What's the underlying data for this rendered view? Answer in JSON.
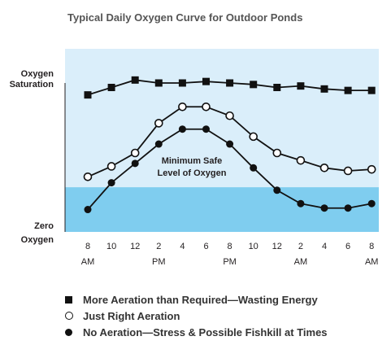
{
  "chart_data": {
    "type": "line",
    "title": "Typical Daily Oxygen Curve for Outdoor Ponds",
    "y_axis": {
      "top_label_lines": [
        "Oxygen",
        "Saturation"
      ],
      "bottom_label_lines": [
        "Zero",
        "Oxygen"
      ],
      "range": [
        0,
        100
      ],
      "saturation_value": 100
    },
    "x_axis": {
      "ticks": [
        "8",
        "10",
        "12",
        "2",
        "4",
        "6",
        "8",
        "10",
        "12",
        "2",
        "4",
        "6",
        "8"
      ],
      "sublabels": [
        {
          "tick_index": 0,
          "text": "AM"
        },
        {
          "tick_index": 3,
          "text": "PM"
        },
        {
          "tick_index": 6,
          "text": "PM"
        },
        {
          "tick_index": 9,
          "text": "AM"
        },
        {
          "tick_index": 12,
          "text": "AM"
        }
      ]
    },
    "threshold": {
      "value": 30,
      "label_lines": [
        "Minimum Safe",
        "Level of Oxygen"
      ]
    },
    "series": [
      {
        "name": "More Aeration than Required—Wasting Energy",
        "marker": "square",
        "x": [
          0,
          1,
          2,
          3,
          4,
          5,
          6,
          7,
          8,
          9,
          10,
          11,
          12
        ],
        "values": [
          92,
          97,
          102,
          100,
          100,
          101,
          100,
          99,
          97,
          98,
          96,
          95,
          95
        ]
      },
      {
        "name": "Just Right Aeration",
        "marker": "open-circle",
        "x": [
          0,
          1,
          2,
          3,
          4,
          5,
          6,
          7,
          8,
          9,
          10,
          11,
          12
        ],
        "values": [
          37,
          44,
          53,
          73,
          84,
          84,
          78,
          64,
          53,
          48,
          43,
          41,
          42
        ]
      },
      {
        "name": "No Aeration—Stress & Possible Fishkill at Times",
        "marker": "filled-circle",
        "x": [
          0,
          1,
          2,
          3,
          4,
          5,
          6,
          7,
          8,
          9,
          10,
          11,
          12
        ],
        "values": [
          15,
          33,
          46,
          59,
          69,
          69,
          59,
          43,
          28,
          19,
          16,
          16,
          19
        ]
      }
    ],
    "colors": {
      "upper_band": "#daeefa",
      "lower_band": "#7fcdef",
      "markers": "#111111"
    },
    "grid": false,
    "legend_position": "bottom"
  }
}
